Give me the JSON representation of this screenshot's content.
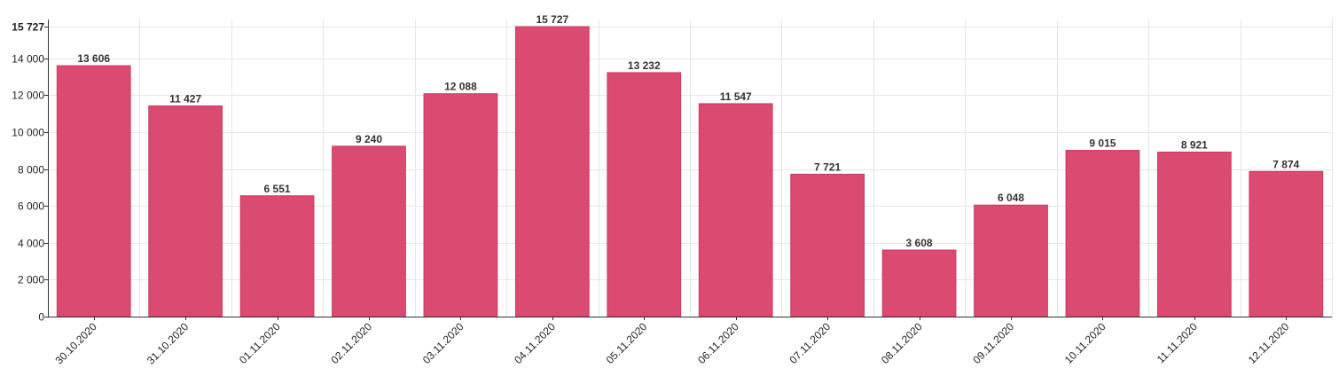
{
  "chart_data": {
    "type": "bar",
    "title": "",
    "xlabel": "",
    "ylabel": "",
    "categories": [
      "30.10.2020",
      "31.10.2020",
      "01.11.2020",
      "02.11.2020",
      "03.11.2020",
      "04.11.2020",
      "05.11.2020",
      "06.11.2020",
      "07.11.2020",
      "08.11.2020",
      "09.11.2020",
      "10.11.2020",
      "11.11.2020",
      "12.11.2020"
    ],
    "values": [
      13606,
      11427,
      6551,
      9240,
      12088,
      15727,
      13232,
      11547,
      7721,
      3608,
      6048,
      9015,
      8921,
      7874
    ],
    "value_labels": [
      "13 606",
      "11 427",
      "6 551",
      "9 240",
      "12 088",
      "15 727",
      "13 232",
      "11 547",
      "7 721",
      "3 608",
      "6 048",
      "9 015",
      "8 921",
      "7 874"
    ],
    "ylim": [
      0,
      15727
    ],
    "y_ticks": [
      0,
      2000,
      4000,
      6000,
      8000,
      10000,
      12000,
      14000,
      15727
    ],
    "y_tick_labels": [
      "0",
      "2 000",
      "4 000",
      "6 000",
      "8 000",
      "10 000",
      "12 000",
      "14 000",
      "15 727"
    ],
    "grid": true,
    "colors": {
      "bar": "#db4a71",
      "bar_edge": "#c93a61",
      "grid": "#e6e6e6",
      "axis": "#333333"
    }
  }
}
